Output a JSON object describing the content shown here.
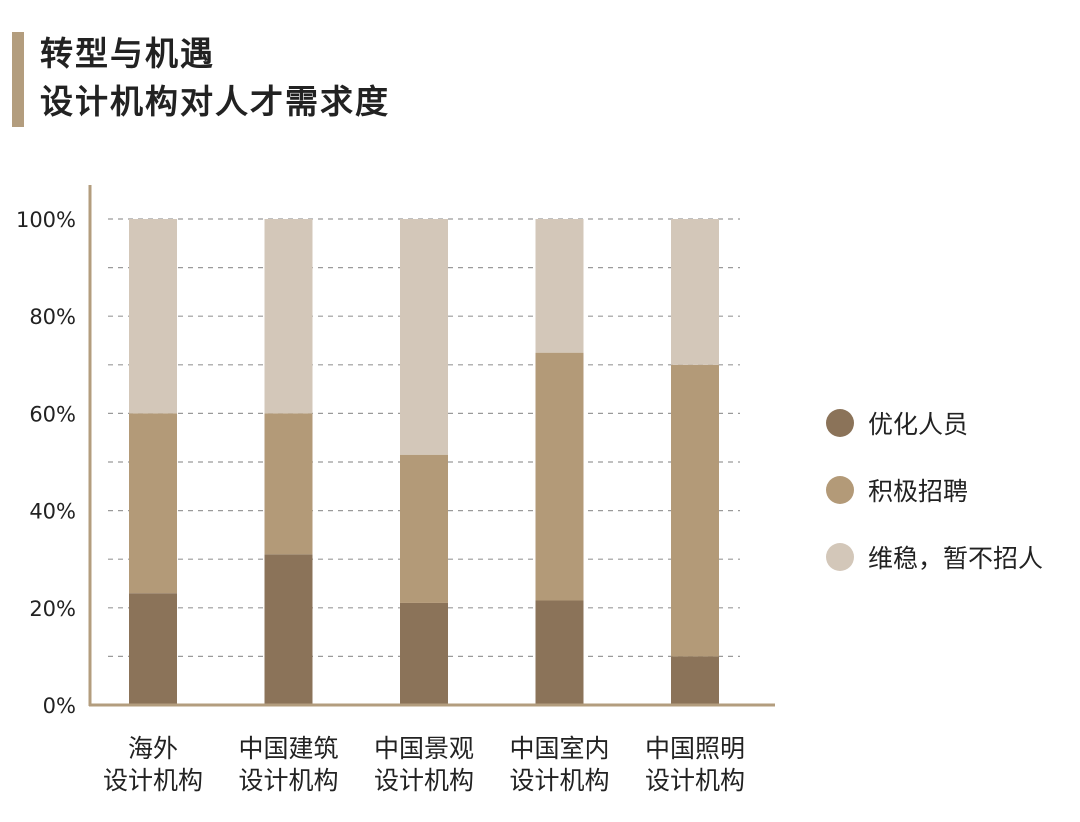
{
  "header": {
    "title_line1": "转型与机遇",
    "title_line2": "设计机构对人才需求度"
  },
  "chart_data": {
    "type": "bar",
    "stacked": true,
    "categories": [
      [
        "海外",
        "设计机构"
      ],
      [
        "中国建筑",
        "设计机构"
      ],
      [
        "中国景观",
        "设计机构"
      ],
      [
        "中国室内",
        "设计机构"
      ],
      [
        "中国照明",
        "设计机构"
      ]
    ],
    "series": [
      {
        "name": "优化人员",
        "color": "#8b7359",
        "values": [
          23,
          31,
          21,
          21.5,
          10
        ]
      },
      {
        "name": "积极招聘",
        "color": "#b39a78",
        "values": [
          37,
          29,
          30.5,
          51,
          60
        ]
      },
      {
        "name": "维稳，暂不招人",
        "color": "#d3c7b9",
        "values": [
          40,
          40,
          48.5,
          27.5,
          30
        ]
      }
    ],
    "y_ticks": [
      "0%",
      "20%",
      "40%",
      "60%",
      "80%",
      "100%"
    ],
    "ylim": [
      0,
      100
    ],
    "grid": true,
    "legend_position": "right"
  }
}
